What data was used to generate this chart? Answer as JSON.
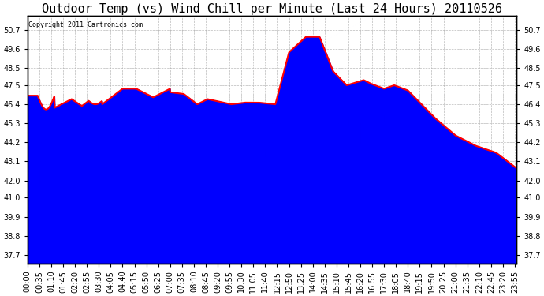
{
  "title": "Outdoor Temp (vs) Wind Chill per Minute (Last 24 Hours) 20110526",
  "copyright_text": "Copyright 2011 Cartronics.com",
  "yticks": [
    37.7,
    38.8,
    39.9,
    41.0,
    42.0,
    43.1,
    44.2,
    45.3,
    46.4,
    47.5,
    48.5,
    49.6,
    50.7
  ],
  "ylim": [
    37.2,
    51.5
  ],
  "background_color": "#ffffff",
  "plot_bg_color": "#ffffff",
  "grid_color": "#aaaaaa",
  "line1_color": "#0000ff",
  "line2_color": "#ff0000",
  "title_fontsize": 11,
  "tick_fontsize": 7.0,
  "n_points": 1440,
  "xtick_step": 35
}
